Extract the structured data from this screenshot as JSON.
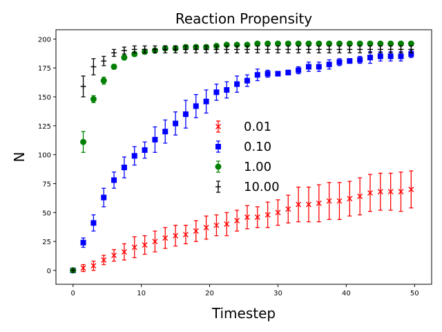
{
  "chart_data": {
    "type": "scatter",
    "title": "Reaction Propensity",
    "xlabel": "Timestep",
    "ylabel": "N",
    "xlim": [
      -2.5,
      52.5
    ],
    "ylim": [
      -12,
      208
    ],
    "xticks": [
      0,
      10,
      20,
      30,
      40,
      50
    ],
    "yticks": [
      0,
      25,
      50,
      75,
      100,
      125,
      150,
      175,
      200
    ],
    "grid": false,
    "legend_position": "center",
    "x": [
      0,
      1.5,
      3,
      4.5,
      6,
      7.5,
      9,
      10.5,
      12,
      13.5,
      15,
      16.5,
      18,
      19.5,
      21,
      22.5,
      24,
      25.5,
      27,
      28.5,
      30,
      31.5,
      33,
      34.5,
      36,
      37.5,
      39,
      40.5,
      42,
      43.5,
      45,
      46.5,
      48,
      49.5
    ],
    "series": [
      {
        "name": "0.01",
        "marker": "x",
        "color": "#ff0000",
        "values": [
          0,
          2,
          4,
          9,
          13,
          16,
          20,
          22,
          25,
          28,
          30,
          31,
          34,
          37,
          39,
          40,
          43,
          46,
          46,
          48,
          50,
          53,
          57,
          57,
          58,
          60,
          60,
          62,
          64,
          67,
          68,
          68,
          68,
          70
        ],
        "err": [
          0,
          3,
          4,
          4,
          5,
          7,
          9,
          8,
          9,
          9,
          9,
          8,
          9,
          10,
          9,
          10,
          9,
          10,
          9,
          11,
          11,
          12,
          15,
          15,
          16,
          16,
          16,
          15,
          16,
          16,
          16,
          16,
          17,
          16
        ]
      },
      {
        "name": "0.10",
        "marker": "square",
        "color": "#0000ff",
        "values": [
          0,
          24,
          41,
          63,
          78,
          89,
          99,
          104,
          113,
          120,
          127,
          135,
          142,
          146,
          154,
          156,
          161,
          164,
          169,
          170,
          170,
          171,
          173,
          176,
          176,
          178,
          180,
          181,
          182,
          184,
          185,
          185,
          185,
          187
        ],
        "err": [
          0,
          4,
          7,
          8,
          7,
          9,
          8,
          7,
          11,
          10,
          10,
          12,
          10,
          10,
          7,
          7,
          7,
          5,
          5,
          3,
          2,
          2,
          3,
          4,
          4,
          4,
          3,
          2,
          3,
          5,
          4,
          4,
          4,
          3
        ]
      },
      {
        "name": "1.00",
        "marker": "circle",
        "color": "#008000",
        "values": [
          0,
          111,
          148,
          164,
          176,
          184,
          187,
          189,
          190,
          192,
          192,
          193,
          193,
          193,
          194,
          195,
          195,
          195,
          196,
          196,
          196,
          196,
          196,
          196,
          196,
          196,
          196,
          196,
          196,
          196,
          196,
          196,
          196,
          196
        ],
        "err": [
          0,
          9,
          3,
          3,
          2,
          2,
          2,
          2,
          2,
          2,
          2,
          2,
          2,
          2,
          1,
          1,
          1,
          1,
          1,
          1,
          1,
          1,
          1,
          1,
          1,
          1,
          1,
          1,
          1,
          1,
          1,
          1,
          1,
          1
        ]
      },
      {
        "name": "10.00",
        "marker": "plus",
        "color": "#000000",
        "values": [
          0,
          159,
          176,
          181,
          188,
          190,
          191,
          191,
          191,
          191,
          191,
          191,
          191,
          191,
          191,
          191,
          191,
          191,
          191,
          191,
          191,
          191,
          191,
          191,
          191,
          191,
          191,
          191,
          191,
          191,
          191,
          191,
          191,
          191
        ],
        "err": [
          0,
          9,
          7,
          4,
          3,
          3,
          3,
          3,
          3,
          3,
          3,
          3,
          3,
          3,
          3,
          3,
          3,
          3,
          3,
          3,
          3,
          3,
          3,
          3,
          3,
          3,
          3,
          3,
          3,
          3,
          3,
          3,
          3,
          3
        ]
      }
    ]
  }
}
